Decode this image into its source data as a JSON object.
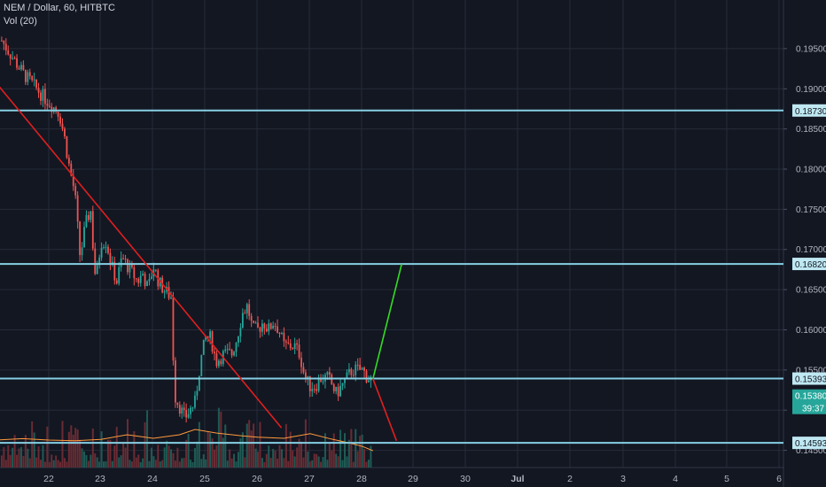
{
  "header": {
    "symbol_line": "NEM / Dollar, 60, HITBTC",
    "indicator": "Vol (20)"
  },
  "colors": {
    "background": "#131722",
    "grid": "#262b3a",
    "level_line": "#86cfe3",
    "trend_line": "#e01f1f",
    "up_projection": "#33dd22",
    "down_projection": "#e01f1f",
    "candle_up": "#26a69a",
    "candle_down": "#ef5350",
    "volume_ma": "#ff9a3c",
    "price_badge_bg": "#bfe8f2",
    "current_badge_bg": "#26a69a",
    "badge_text": "#131722"
  },
  "chart_data": {
    "type": "candlestick",
    "title": "NEM / Dollar, 60, HITBTC",
    "indicator": "Vol (20)",
    "x_ticks": [
      "22",
      "23",
      "24",
      "25",
      "26",
      "27",
      "28",
      "29",
      "30",
      "Jul",
      "2",
      "3",
      "4",
      "5",
      "6"
    ],
    "y_ticks": [
      "0.19500",
      "0.19000",
      "0.18500",
      "0.18000",
      "0.17500",
      "0.17000",
      "0.16500",
      "0.16000",
      "0.15500",
      "0.15000",
      "0.14500"
    ],
    "ylim": [
      0.1433,
      0.2005
    ],
    "horizontal_levels": [
      {
        "value": 0.1873,
        "label": "0.18730"
      },
      {
        "value": 0.1682,
        "label": "0.16820"
      },
      {
        "value": 0.15393,
        "label": "0.15393"
      },
      {
        "value": 0.14593,
        "label": "0.14593"
      }
    ],
    "current_price": {
      "value": 0.1538,
      "label": "0.15380"
    },
    "countdown": "39:37",
    "trend_line": {
      "from": [
        "21.05",
        0.1903
      ],
      "to": [
        "26.45",
        0.1478
      ]
    },
    "projections": [
      {
        "name": "up",
        "from": [
          "28.2",
          0.1539
        ],
        "to": [
          "28.75",
          0.1682
        ]
      },
      {
        "name": "down",
        "from": [
          "28.2",
          0.1539
        ],
        "to": [
          "28.65",
          0.1462
        ]
      }
    ],
    "price_path": [
      [
        "21.1",
        0.196
      ],
      [
        "21.5",
        0.192
      ],
      [
        "21.9",
        0.189
      ],
      [
        "22.2",
        0.187
      ],
      [
        "22.3",
        0.184
      ],
      [
        "22.4",
        0.18
      ],
      [
        "22.5",
        0.177
      ],
      [
        "22.6",
        0.169
      ],
      [
        "22.7",
        0.173
      ],
      [
        "22.8",
        0.175
      ],
      [
        "22.85",
        0.17
      ],
      [
        "22.9",
        0.166
      ],
      [
        "23.0",
        0.171
      ],
      [
        "23.1",
        0.171
      ],
      [
        "23.2",
        0.168
      ],
      [
        "23.3",
        0.166
      ],
      [
        "23.4",
        0.169
      ],
      [
        "23.5",
        0.168
      ],
      [
        "23.6",
        0.167
      ],
      [
        "23.7",
        0.166
      ],
      [
        "23.8",
        0.167
      ],
      [
        "23.9",
        0.165
      ],
      [
        "24.0",
        0.168
      ],
      [
        "24.1",
        0.166
      ],
      [
        "24.2",
        0.165
      ],
      [
        "24.35",
        0.164
      ],
      [
        "24.4",
        0.152
      ],
      [
        "24.6",
        0.149
      ],
      [
        "24.8",
        0.151
      ],
      [
        "24.9",
        0.156
      ],
      [
        "25.0",
        0.159
      ],
      [
        "25.1",
        0.159
      ],
      [
        "25.2",
        0.156
      ],
      [
        "25.35",
        0.157
      ],
      [
        "25.5",
        0.157
      ],
      [
        "25.6",
        0.159
      ],
      [
        "25.7",
        0.162
      ],
      [
        "25.8",
        0.163
      ],
      [
        "25.9",
        0.16
      ],
      [
        "26.0",
        0.16
      ],
      [
        "26.1",
        0.161
      ],
      [
        "26.2",
        0.16
      ],
      [
        "26.3",
        0.161
      ],
      [
        "26.4",
        0.16
      ],
      [
        "26.5",
        0.158
      ],
      [
        "26.6",
        0.158
      ],
      [
        "26.7",
        0.158
      ],
      [
        "26.8",
        0.157
      ],
      [
        "26.9",
        0.154
      ],
      [
        "27.0",
        0.153
      ],
      [
        "27.1",
        0.153
      ],
      [
        "27.2",
        0.154
      ],
      [
        "27.35",
        0.154
      ],
      [
        "27.5",
        0.152
      ],
      [
        "27.6",
        0.153
      ],
      [
        "27.7",
        0.154
      ],
      [
        "27.8",
        0.155
      ],
      [
        "27.9",
        0.155
      ],
      [
        "28.0",
        0.155
      ],
      [
        "28.1",
        0.154
      ],
      [
        "28.2",
        0.1538
      ]
    ],
    "volume_ma_path": [
      [
        "21.0",
        0.4
      ],
      [
        "21.5",
        0.44
      ],
      [
        "22.0",
        0.4
      ],
      [
        "22.5",
        0.38
      ],
      [
        "23.0",
        0.42
      ],
      [
        "23.5",
        0.55
      ],
      [
        "24.0",
        0.45
      ],
      [
        "24.5",
        0.55
      ],
      [
        "24.8",
        0.7
      ],
      [
        "25.2",
        0.6
      ],
      [
        "25.7",
        0.52
      ],
      [
        "26.0",
        0.48
      ],
      [
        "26.5",
        0.45
      ],
      [
        "27.0",
        0.58
      ],
      [
        "27.4",
        0.43
      ],
      [
        "27.8",
        0.3
      ],
      [
        "28.0",
        0.22
      ],
      [
        "28.2",
        0.1
      ]
    ],
    "grid": true
  }
}
